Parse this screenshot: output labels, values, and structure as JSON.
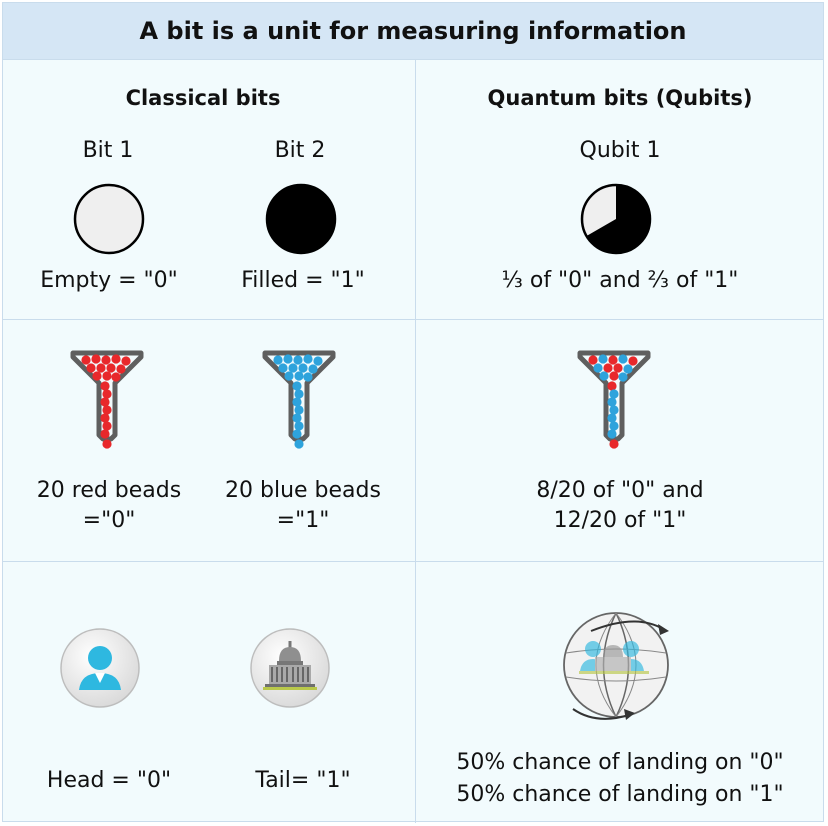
{
  "title": "A bit is a unit for measuring information",
  "classical": {
    "header": "Classical bits",
    "bit1_label": "Bit 1",
    "bit2_label": "Bit 2",
    "bit1_desc": "Empty = \"0\"",
    "bit2_desc": "Filled = \"1\"",
    "funnel_red_line1": "20 red beads",
    "funnel_red_line2": "=\"0\"",
    "funnel_blue_line1": "20 blue beads",
    "funnel_blue_line2": "=\"1\"",
    "coin_head": "Head = \"0\"",
    "coin_tail": "Tail= \"1\""
  },
  "quantum": {
    "header": "Quantum bits (Qubits)",
    "qubit_label": "Qubit 1",
    "qubit_desc": "⅓ of \"0\" and ⅔ of \"1\"",
    "funnel_line1": "8/20 of \"0\" and",
    "funnel_line2": "12/20 of \"1\"",
    "coin_line1": "50% chance of landing on \"0\"",
    "coin_line2": "50% chance of landing on \"1\""
  },
  "qubit_filled_fraction": 0.6667,
  "funnels": {
    "red_beads": 20,
    "blue_beads": 20,
    "mixed_red": 8,
    "mixed_blue": 12
  },
  "colors": {
    "header_bg": "#d5e6f5",
    "cell_bg": "#f2fbfd",
    "grid": "#c9dcec",
    "red_bead": "#e8282b",
    "blue_bead": "#2ea3dc",
    "funnel": "#5f5f5f",
    "filled": "#000000",
    "empty": "#efefef"
  }
}
